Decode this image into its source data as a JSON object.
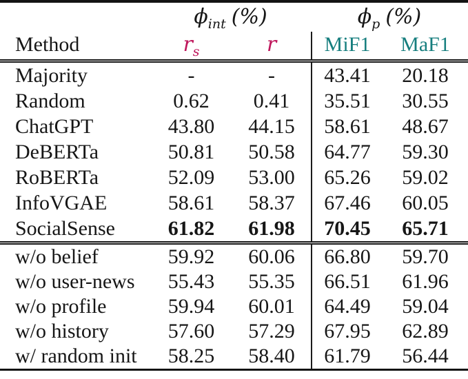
{
  "colors": {
    "accent_crimson": "#bf175c",
    "accent_teal": "#167e7e",
    "text": "#161616",
    "background": "#ffffff"
  },
  "table": {
    "group_headers": {
      "phi_int": {
        "symbol": "ϕ",
        "sub": "int",
        "unit": "(%)"
      },
      "phi_p": {
        "symbol": "ϕ",
        "sub": "p",
        "unit": "(%)"
      }
    },
    "columns": {
      "method": "Method",
      "rs_base": "r",
      "rs_sub": "s",
      "r_base": "r",
      "mif1": "MiF1",
      "maf1": "MaF1"
    },
    "section1": [
      {
        "method": "Majority",
        "rs": "-",
        "r": "-",
        "mif1": "43.41",
        "maf1": "20.18"
      },
      {
        "method": "Random",
        "rs": "0.62",
        "r": "0.41",
        "mif1": "35.51",
        "maf1": "30.55"
      },
      {
        "method": "ChatGPT",
        "rs": "43.80",
        "r": "44.15",
        "mif1": "58.61",
        "maf1": "48.67"
      },
      {
        "method": "DeBERTa",
        "rs": "50.81",
        "r": "50.58",
        "mif1": "64.77",
        "maf1": "59.30"
      },
      {
        "method": "RoBERTa",
        "rs": "52.09",
        "r": "53.00",
        "mif1": "65.26",
        "maf1": "59.02"
      },
      {
        "method": "InfoVGAE",
        "rs": "58.61",
        "r": "58.37",
        "mif1": "67.46",
        "maf1": "60.05"
      },
      {
        "method": "SocialSense",
        "rs": "61.82",
        "r": "61.98",
        "mif1": "70.45",
        "maf1": "65.71",
        "bold": true
      }
    ],
    "section2": [
      {
        "method": "w/o belief",
        "rs": "59.92",
        "r": "60.06",
        "mif1": "66.80",
        "maf1": "59.70"
      },
      {
        "method": "w/o user-news",
        "rs": "55.43",
        "r": "55.35",
        "mif1": "66.51",
        "maf1": "61.96"
      },
      {
        "method": "w/o profile",
        "rs": "59.94",
        "r": "60.01",
        "mif1": "64.49",
        "maf1": "59.04"
      },
      {
        "method": "w/o history",
        "rs": "57.60",
        "r": "57.29",
        "mif1": "67.95",
        "maf1": "62.89"
      },
      {
        "method": "w/ random init",
        "rs": "58.25",
        "r": "58.40",
        "mif1": "61.79",
        "maf1": "56.44"
      }
    ]
  }
}
